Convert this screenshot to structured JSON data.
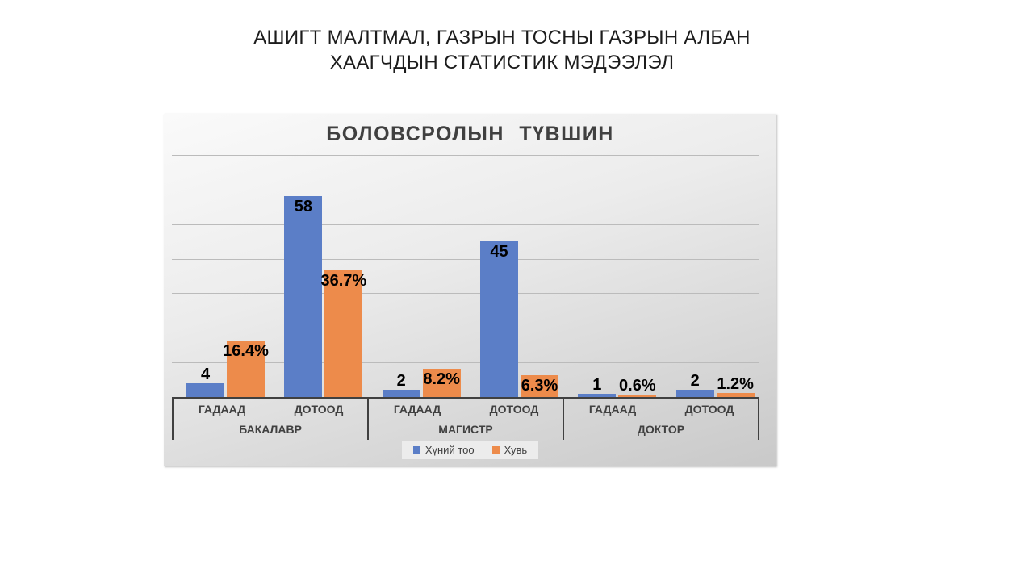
{
  "page_title": {
    "line1": "АШИГТ МАЛТМАЛ, ГАЗРЫН ТОСНЫ ГАЗРЫН АЛБАН",
    "line2": "ХААГЧДЫН СТАТИСТИК МЭДЭЭЛЭЛ"
  },
  "chart_data": {
    "type": "bar",
    "title": "БОЛОВСРОЛЫН ТҮВШИН",
    "ylim": [
      0,
      70
    ],
    "gridline_step": 10,
    "grid": true,
    "y_axis_labels_visible": false,
    "legend_position": "bottom",
    "groups": [
      {
        "label": "БАКАЛАВР",
        "categories": [
          {
            "label": "ГАДААД",
            "count": 4,
            "count_label": "4",
            "percent": 16.4,
            "percent_label": "16.4%"
          },
          {
            "label": "ДОТООД",
            "count": 58,
            "count_label": "58",
            "percent": 36.7,
            "percent_label": "36.7%"
          }
        ]
      },
      {
        "label": "МАГИСТР",
        "categories": [
          {
            "label": "ГАДААД",
            "count": 2,
            "count_label": "2",
            "percent": 8.2,
            "percent_label": "8.2%"
          },
          {
            "label": "ДОТООД",
            "count": 45,
            "count_label": "45",
            "percent": 6.3,
            "percent_label": "6.3%"
          }
        ]
      },
      {
        "label": "ДОКТОР",
        "categories": [
          {
            "label": "ГАДААД",
            "count": 1,
            "count_label": "1",
            "percent": 0.6,
            "percent_label": "0.6%"
          },
          {
            "label": "ДОТООД",
            "count": 2,
            "count_label": "2",
            "percent": 1.2,
            "percent_label": "1.2%"
          }
        ]
      }
    ],
    "series": [
      {
        "name": "Хүний тоо",
        "color": "#5B7EC7",
        "values": [
          4,
          58,
          2,
          45,
          1,
          2
        ]
      },
      {
        "name": "Хувь",
        "color": "#ED8B4B",
        "values": [
          16.4,
          36.7,
          8.2,
          6.3,
          0.6,
          1.2
        ]
      }
    ],
    "colors": {
      "count_series": "#5B7EC7",
      "percent_series": "#ED8B4B",
      "gridline": "#bbbbbb",
      "axis_line": "#404040"
    }
  }
}
